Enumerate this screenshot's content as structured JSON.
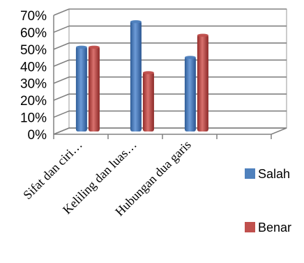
{
  "chart_data": {
    "type": "bar",
    "title": "",
    "xlabel": "",
    "ylabel": "",
    "categories": [
      "Sifat dan ciri…",
      "Keliling dan luas…",
      "Hubungan dua garis",
      ""
    ],
    "series": [
      {
        "name": "Salah",
        "values": [
          50,
          65,
          44,
          null
        ],
        "color": "#4F81BD"
      },
      {
        "name": "Benar",
        "values": [
          50,
          35,
          57,
          null
        ],
        "color": "#C0504D"
      }
    ],
    "ylim": [
      0,
      70
    ],
    "yticks": [
      "0%",
      "10%",
      "20%",
      "30%",
      "40%",
      "50%",
      "60%",
      "70%"
    ],
    "grid": true,
    "legend": "right",
    "projection": "3d"
  }
}
